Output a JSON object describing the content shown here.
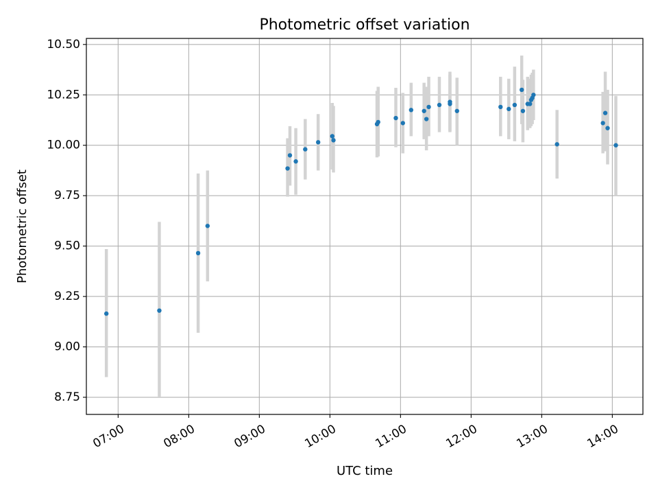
{
  "chart_data": {
    "type": "scatter",
    "title": "Photometric offset variation",
    "xlabel": "UTC time",
    "ylabel": "Photometric offset",
    "x_tick_labels": [
      "07:00",
      "08:00",
      "09:00",
      "10:00",
      "11:00",
      "12:00",
      "13:00",
      "14:00"
    ],
    "y_tick_labels": [
      "8.75",
      "9.00",
      "9.25",
      "9.50",
      "9.75",
      "10.00",
      "10.25",
      "10.50"
    ],
    "xlim": [
      "06:33",
      "14:26"
    ],
    "ylim": [
      8.665,
      10.53
    ],
    "grid": true,
    "colors": {
      "point": "#1f77b4",
      "errorbar": "#d3d3d3",
      "grid": "#b0b0b0"
    },
    "series": [
      {
        "points": [
          {
            "x": "06:50",
            "y": 9.165,
            "lo": 8.85,
            "hi": 9.485
          },
          {
            "x": "07:35",
            "y": 9.18,
            "lo": 8.75,
            "hi": 9.62
          },
          {
            "x": "08:08",
            "y": 9.465,
            "lo": 9.07,
            "hi": 9.86
          },
          {
            "x": "08:16",
            "y": 9.6,
            "lo": 9.325,
            "hi": 9.875
          },
          {
            "x": "09:24",
            "y": 9.885,
            "lo": 9.745,
            "hi": 10.035
          },
          {
            "x": "09:26",
            "y": 9.95,
            "lo": 9.8,
            "hi": 10.095
          },
          {
            "x": "09:31",
            "y": 9.92,
            "lo": 9.755,
            "hi": 10.085
          },
          {
            "x": "09:39",
            "y": 9.98,
            "lo": 9.83,
            "hi": 10.13
          },
          {
            "x": "09:50",
            "y": 10.015,
            "lo": 9.875,
            "hi": 10.155
          },
          {
            "x": "10:02",
            "y": 10.045,
            "lo": 9.88,
            "hi": 10.21
          },
          {
            "x": "10:03",
            "y": 10.025,
            "lo": 9.865,
            "hi": 10.195
          },
          {
            "x": "10:40",
            "y": 10.105,
            "lo": 9.94,
            "hi": 10.27
          },
          {
            "x": "10:41",
            "y": 10.115,
            "lo": 9.945,
            "hi": 10.29
          },
          {
            "x": "10:56",
            "y": 10.135,
            "lo": 9.99,
            "hi": 10.285
          },
          {
            "x": "11:02",
            "y": 10.11,
            "lo": 9.96,
            "hi": 10.26
          },
          {
            "x": "11:09",
            "y": 10.175,
            "lo": 10.045,
            "hi": 10.31
          },
          {
            "x": "11:20",
            "y": 10.17,
            "lo": 10.03,
            "hi": 10.31
          },
          {
            "x": "11:22",
            "y": 10.13,
            "lo": 9.975,
            "hi": 10.29
          },
          {
            "x": "11:24",
            "y": 10.19,
            "lo": 10.045,
            "hi": 10.34
          },
          {
            "x": "11:33",
            "y": 10.2,
            "lo": 10.065,
            "hi": 10.34
          },
          {
            "x": "11:42",
            "y": 10.215,
            "lo": 10.065,
            "hi": 10.365
          },
          {
            "x": "11:42",
            "y": 10.205,
            "lo": 10.07,
            "hi": 10.35
          },
          {
            "x": "11:48",
            "y": 10.17,
            "lo": 10.0,
            "hi": 10.335
          },
          {
            "x": "12:25",
            "y": 10.19,
            "lo": 10.045,
            "hi": 10.34
          },
          {
            "x": "12:32",
            "y": 10.18,
            "lo": 10.03,
            "hi": 10.33
          },
          {
            "x": "12:37",
            "y": 10.2,
            "lo": 10.02,
            "hi": 10.39
          },
          {
            "x": "12:43",
            "y": 10.275,
            "lo": 10.105,
            "hi": 10.445
          },
          {
            "x": "12:44",
            "y": 10.17,
            "lo": 10.015,
            "hi": 10.325
          },
          {
            "x": "12:48",
            "y": 10.205,
            "lo": 10.075,
            "hi": 10.34
          },
          {
            "x": "12:50",
            "y": 10.205,
            "lo": 10.085,
            "hi": 10.33
          },
          {
            "x": "12:51",
            "y": 10.225,
            "lo": 10.095,
            "hi": 10.35
          },
          {
            "x": "12:52",
            "y": 10.235,
            "lo": 10.105,
            "hi": 10.36
          },
          {
            "x": "12:53",
            "y": 10.25,
            "lo": 10.125,
            "hi": 10.375
          },
          {
            "x": "13:13",
            "y": 10.005,
            "lo": 9.835,
            "hi": 10.175
          },
          {
            "x": "13:52",
            "y": 10.11,
            "lo": 9.96,
            "hi": 10.265
          },
          {
            "x": "13:54",
            "y": 10.16,
            "lo": 9.97,
            "hi": 10.365
          },
          {
            "x": "13:56",
            "y": 10.085,
            "lo": 9.905,
            "hi": 10.275
          },
          {
            "x": "14:03",
            "y": 10.0,
            "lo": 9.75,
            "hi": 10.245
          }
        ]
      }
    ]
  }
}
